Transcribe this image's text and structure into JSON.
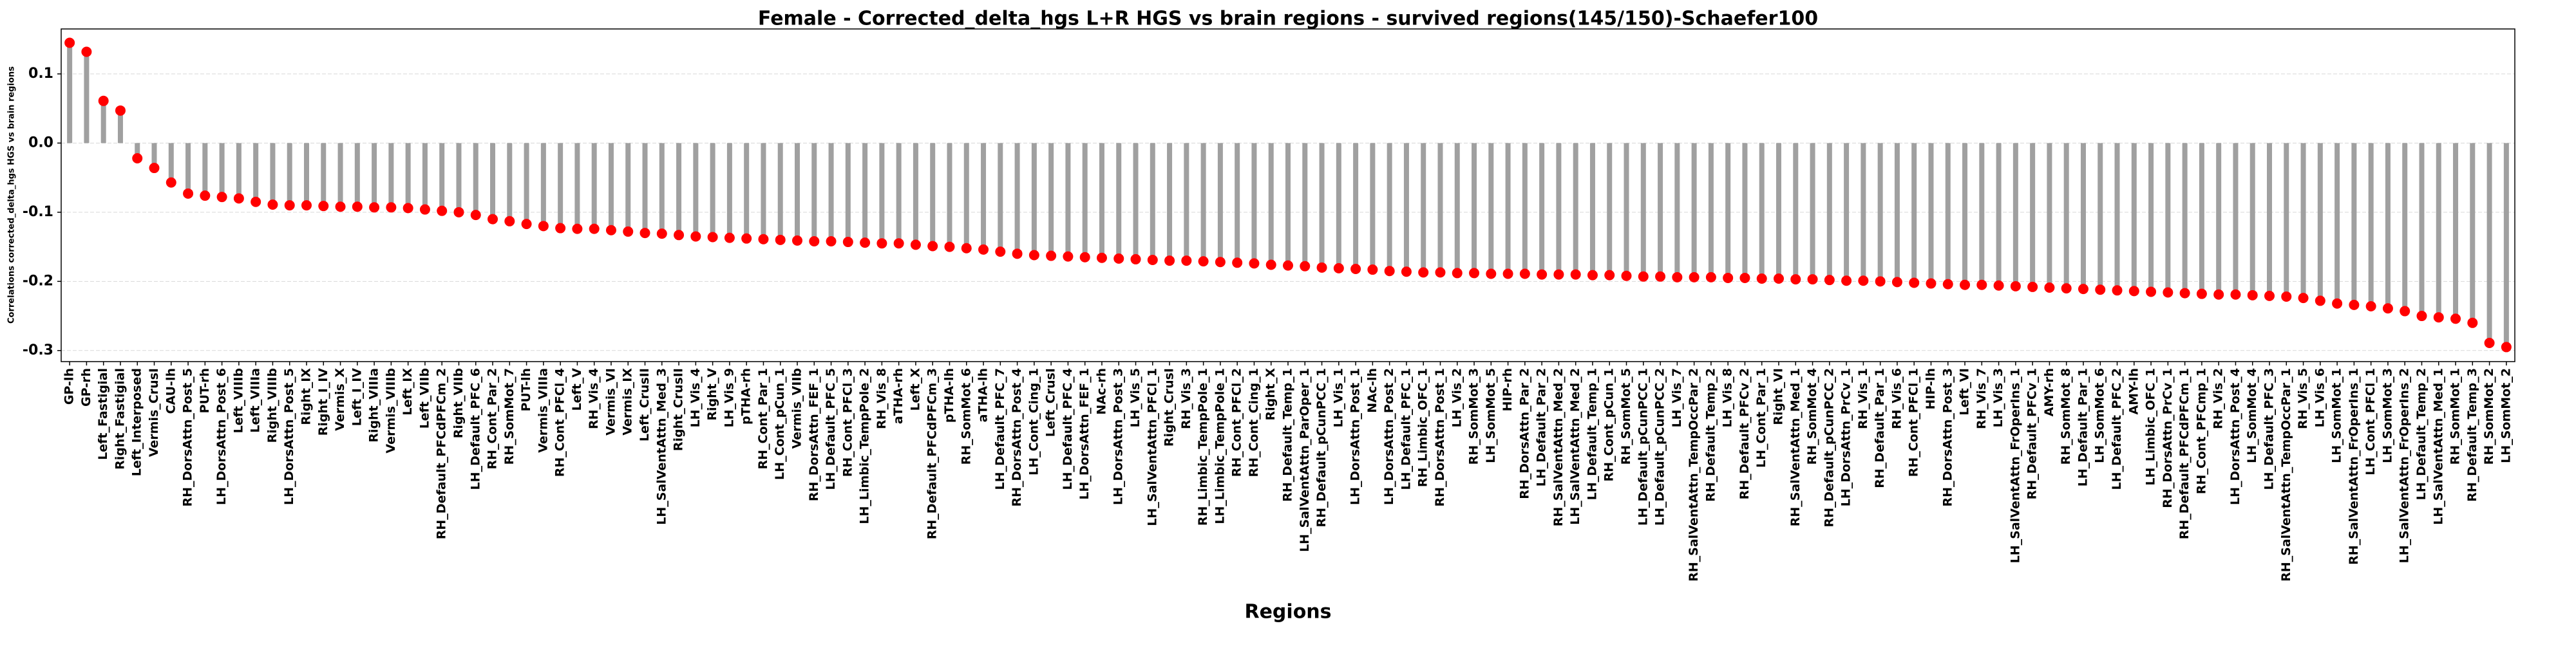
{
  "chart_data": {
    "type": "lollipop",
    "title": "Female - Corrected_delta_hgs L+R HGS vs brain regions - survived regions(145/150)-Schaefer100",
    "xlabel": "Regions",
    "ylabel": "Correlations corrected_delta_hgs HGS vs brain regions",
    "categories": [
      "GP-lh",
      "GP-rh",
      "Left_Fastigial",
      "Right_Fastigial",
      "Left_Interposed",
      "Vermis_CrusI",
      "CAU-lh",
      "RH_DorsAttn_Post_5",
      "PUT-rh",
      "LH_DorsAttn_Post_6",
      "Left_VIIIb",
      "Left_VIIIa",
      "Right_VIIIb",
      "LH_DorsAttn_Post_5",
      "Right_IX",
      "Right_I_IV",
      "Vermis_X",
      "Left_I_IV",
      "Right_VIIIa",
      "Vermis_VIIIb",
      "Left_IX",
      "Left_VIIb",
      "RH_Default_PFCdPFCm_2",
      "Right_VIIb",
      "LH_Default_PFC_6",
      "RH_Cont_Par_2",
      "RH_SomMot_7",
      "PUT-lh",
      "Vermis_VIIIa",
      "RH_Cont_PFCl_4",
      "Left_V",
      "RH_Vis_4",
      "Vermis_VI",
      "Vermis_IX",
      "Left_CrusII",
      "LH_SalVentAttn_Med_3",
      "Right_CrusII",
      "LH_Vis_4",
      "Right_V",
      "LH_Vis_9",
      "pTHA-rh",
      "RH_Cont_Par_1",
      "LH_Cont_pCun_1",
      "Vermis_VIIb",
      "RH_DorsAttn_FEF_1",
      "LH_Default_PFC_5",
      "RH_Cont_PFCl_3",
      "LH_Limbic_TempPole_2",
      "RH_Vis_8",
      "aTHA-rh",
      "Left_X",
      "RH_Default_PFCdPFCm_3",
      "pTHA-lh",
      "RH_SomMot_6",
      "aTHA-lh",
      "LH_Default_PFC_7",
      "RH_DorsAttn_Post_4",
      "LH_Cont_Cing_1",
      "Left_CrusI",
      "LH_Default_PFC_4",
      "LH_DorsAttn_FEF_1",
      "NAc-rh",
      "LH_DorsAttn_Post_3",
      "LH_Vis_5",
      "LH_SalVentAttn_PFCl_1",
      "Right_CrusI",
      "RH_Vis_3",
      "RH_Limbic_TempPole_1",
      "LH_Limbic_TempPole_1",
      "RH_Cont_PFCl_2",
      "RH_Cont_Cing_1",
      "Right_X",
      "RH_Default_Temp_1",
      "LH_SalVentAttn_ParOper_1",
      "RH_Default_pCunPCC_1",
      "LH_Vis_1",
      "LH_DorsAttn_Post_1",
      "NAc-lh",
      "LH_DorsAttn_Post_2",
      "LH_Default_PFC_1",
      "RH_Limbic_OFC_1",
      "RH_DorsAttn_Post_1",
      "LH_Vis_2",
      "RH_SomMot_3",
      "LH_SomMot_5",
      "HIP-rh",
      "RH_DorsAttn_Par_2",
      "LH_Default_Par_2",
      "RH_SalVentAttn_Med_2",
      "LH_SalVentAttn_Med_2",
      "LH_Default_Temp_1",
      "RH_Cont_pCun_1",
      "RH_SomMot_5",
      "LH_Default_pCunPCC_1",
      "LH_Default_pCunPCC_2",
      "LH_Vis_7",
      "RH_SalVentAttn_TempOccPar_2",
      "RH_Default_Temp_2",
      "LH_Vis_8",
      "RH_Default_PFCv_2",
      "LH_Cont_Par_1",
      "Right_VI",
      "RH_SalVentAttn_Med_1",
      "RH_SomMot_4",
      "RH_Default_pCunPCC_2",
      "LH_DorsAttn_PrCv_1",
      "RH_Vis_1",
      "RH_Default_Par_1",
      "RH_Vis_6",
      "RH_Cont_PFCl_1",
      "HIP-lh",
      "RH_DorsAttn_Post_3",
      "Left_VI",
      "RH_Vis_7",
      "LH_Vis_3",
      "LH_SalVentAttn_FrOperIns_1",
      "RH_Default_PFCv_1",
      "AMY-rh",
      "RH_SomMot_8",
      "LH_Default_Par_1",
      "LH_SomMot_6",
      "LH_Default_PFC_2",
      "AMY-lh",
      "LH_Limbic_OFC_1",
      "RH_DorsAttn_PrCv_1",
      "RH_Default_PFCdPFCm_1",
      "RH_Cont_PFCmp_1",
      "RH_Vis_2",
      "LH_DorsAttn_Post_4",
      "LH_SomMot_4",
      "LH_Default_PFC_3",
      "RH_SalVentAttn_TempOccPar_1",
      "RH_Vis_5",
      "LH_Vis_6",
      "LH_SomMot_1",
      "RH_SalVentAttn_FrOperIns_1",
      "LH_Cont_PFCl_1",
      "LH_SomMot_3",
      "LH_SalVentAttn_FrOperIns_2",
      "LH_Default_Temp_2",
      "LH_SalVentAttn_Med_1",
      "RH_SomMot_1",
      "RH_Default_Temp_3",
      "RH_SomMot_2",
      "LH_SomMot_2"
    ],
    "values": [
      0.145,
      0.132,
      0.061,
      0.047,
      -0.022,
      -0.036,
      -0.057,
      -0.073,
      -0.076,
      -0.078,
      -0.08,
      -0.085,
      -0.089,
      -0.09,
      -0.09,
      -0.091,
      -0.092,
      -0.092,
      -0.093,
      -0.093,
      -0.094,
      -0.096,
      -0.098,
      -0.1,
      -0.104,
      -0.11,
      -0.113,
      -0.117,
      -0.12,
      -0.123,
      -0.124,
      -0.124,
      -0.126,
      -0.128,
      -0.13,
      -0.131,
      -0.133,
      -0.135,
      -0.136,
      -0.137,
      -0.138,
      -0.139,
      -0.14,
      -0.141,
      -0.142,
      -0.142,
      -0.143,
      -0.144,
      -0.145,
      -0.145,
      -0.147,
      -0.149,
      -0.15,
      -0.152,
      -0.154,
      -0.157,
      -0.16,
      -0.162,
      -0.163,
      -0.164,
      -0.165,
      -0.166,
      -0.167,
      -0.168,
      -0.169,
      -0.17,
      -0.17,
      -0.171,
      -0.172,
      -0.173,
      -0.174,
      -0.176,
      -0.177,
      -0.178,
      -0.18,
      -0.181,
      -0.182,
      -0.183,
      -0.185,
      -0.186,
      -0.187,
      -0.187,
      -0.188,
      -0.188,
      -0.189,
      -0.189,
      -0.189,
      -0.19,
      -0.19,
      -0.19,
      -0.191,
      -0.191,
      -0.192,
      -0.193,
      -0.193,
      -0.194,
      -0.194,
      -0.194,
      -0.195,
      -0.195,
      -0.196,
      -0.196,
      -0.197,
      -0.197,
      -0.198,
      -0.199,
      -0.199,
      -0.2,
      -0.201,
      -0.202,
      -0.203,
      -0.204,
      -0.205,
      -0.205,
      -0.206,
      -0.207,
      -0.208,
      -0.209,
      -0.21,
      -0.211,
      -0.212,
      -0.213,
      -0.214,
      -0.215,
      -0.216,
      -0.217,
      -0.218,
      -0.219,
      -0.219,
      -0.22,
      -0.221,
      -0.222,
      -0.224,
      -0.228,
      -0.232,
      -0.234,
      -0.236,
      -0.239,
      -0.243,
      -0.25,
      -0.252,
      -0.254,
      -0.26,
      -0.289,
      -0.295
    ],
    "color": "#ff0000",
    "stem_color": "#a0a0a0",
    "ylim": [
      -0.316,
      0.165
    ],
    "yticks": [
      -0.3,
      -0.2,
      -0.1,
      {
        "value": 0,
        "label": "0.0"
      },
      0.1
    ],
    "grid": true
  }
}
